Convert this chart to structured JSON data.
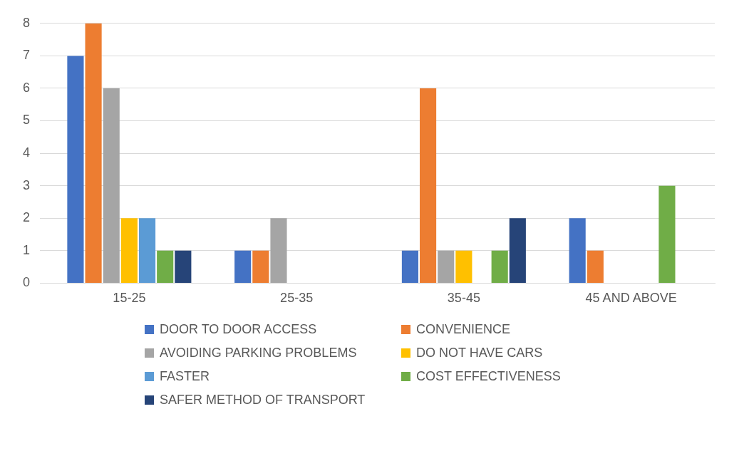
{
  "chart_data": {
    "type": "bar",
    "categories": [
      "15-25",
      "25-35",
      "35-45",
      "45 AND ABOVE"
    ],
    "series": [
      {
        "name": "DOOR TO DOOR ACCESS",
        "color": "#4472c4",
        "values": [
          7,
          1,
          1,
          2
        ]
      },
      {
        "name": "CONVENIENCE",
        "color": "#ed7d31",
        "values": [
          8,
          1,
          6,
          1
        ]
      },
      {
        "name": "AVOIDING PARKING PROBLEMS",
        "color": "#a5a5a5",
        "values": [
          6,
          2,
          1,
          0
        ]
      },
      {
        "name": "DO NOT HAVE CARS",
        "color": "#ffc000",
        "values": [
          2,
          0,
          1,
          0
        ]
      },
      {
        "name": "FASTER",
        "color": "#5b9bd5",
        "values": [
          2,
          0,
          0,
          0
        ]
      },
      {
        "name": "COST EFFECTIVENESS",
        "color": "#70ad47",
        "values": [
          1,
          0,
          1,
          3
        ]
      },
      {
        "name": "SAFER METHOD OF TRANSPORT",
        "color": "#264478",
        "values": [
          1,
          0,
          2,
          0
        ]
      }
    ],
    "ylim": [
      0,
      8
    ],
    "yticks": [
      0,
      1,
      2,
      3,
      4,
      5,
      6,
      7,
      8
    ],
    "grid": "y",
    "legend": "bottom"
  }
}
